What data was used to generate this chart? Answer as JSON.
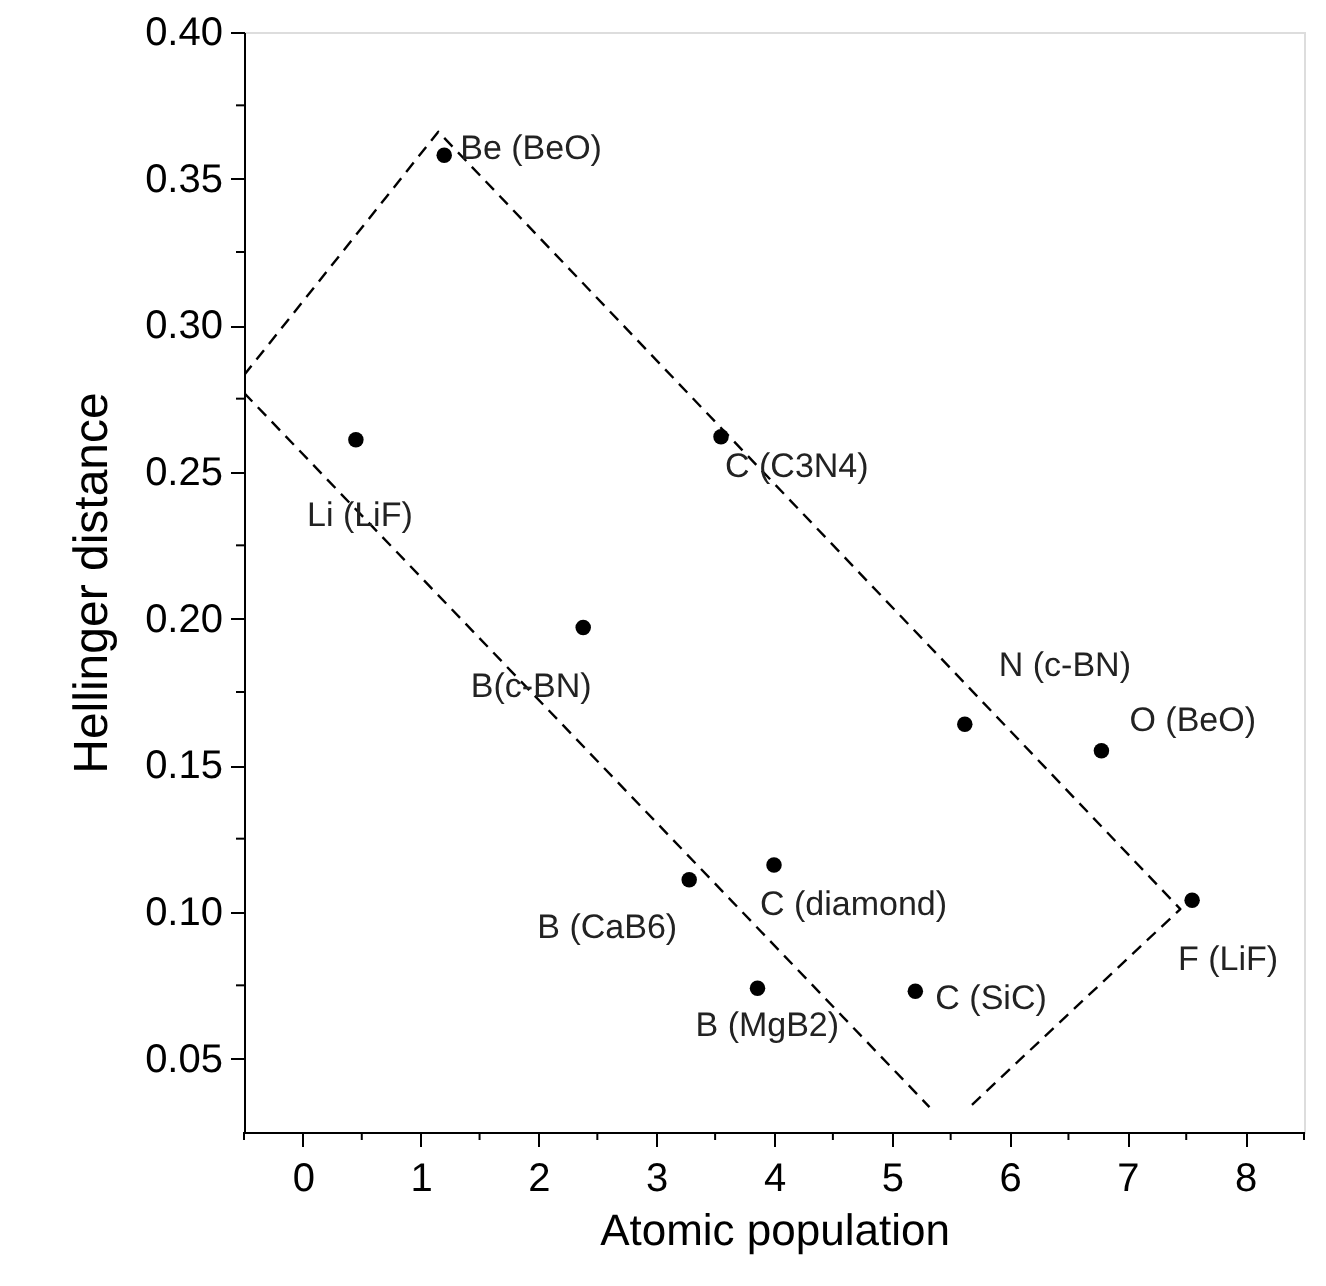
{
  "chart_data": {
    "type": "scatter",
    "xlabel": "Atomic population",
    "ylabel": "Hellinger distance",
    "xlim": [
      -0.5,
      8.5
    ],
    "ylim": [
      0.025,
      0.4
    ],
    "xticks": [
      {
        "value": -0.5,
        "label": null
      },
      0,
      {
        "value": 0.5,
        "label": null
      },
      1,
      {
        "value": 1.5,
        "label": null
      },
      2,
      {
        "value": 2.5,
        "label": null
      },
      3,
      {
        "value": 3.5,
        "label": null
      },
      4,
      {
        "value": 4.5,
        "label": null
      },
      5,
      {
        "value": 5.5,
        "label": null
      },
      6,
      {
        "value": 6.5,
        "label": null
      },
      7,
      {
        "value": 7.5,
        "label": null
      },
      8,
      {
        "value": 8.5,
        "label": null
      }
    ],
    "yticks": [
      {
        "value": 0.05,
        "label": "0.05"
      },
      {
        "value": 0.075,
        "label": null
      },
      {
        "value": 0.1,
        "label": "0.10"
      },
      {
        "value": 0.125,
        "label": null
      },
      {
        "value": 0.15,
        "label": "0.15"
      },
      {
        "value": 0.175,
        "label": null
      },
      {
        "value": 0.2,
        "label": "0.20"
      },
      {
        "value": 0.225,
        "label": null
      },
      {
        "value": 0.25,
        "label": "0.25"
      },
      {
        "value": 0.275,
        "label": null
      },
      {
        "value": 0.3,
        "label": "0.30"
      },
      {
        "value": 0.325,
        "label": null
      },
      {
        "value": 0.35,
        "label": "0.35"
      },
      {
        "value": 0.375,
        "label": null
      },
      {
        "value": 0.4,
        "label": "0.40"
      }
    ],
    "grid": false,
    "series": [
      {
        "type": "scatter",
        "color": "#000000",
        "marker": "circle",
        "x": [
          1.2,
          0.45,
          3.55,
          2.38,
          5.62,
          6.78,
          7.55,
          3.28,
          4.0,
          3.86,
          5.2
        ],
        "values": [
          0.358,
          0.261,
          0.262,
          0.197,
          0.164,
          0.155,
          0.104,
          0.111,
          0.116,
          0.074,
          0.073
        ]
      },
      {
        "type": "line",
        "color": "#000000",
        "marker": "none",
        "line_style": "dashed",
        "x": [
          -0.5,
          5.32
        ],
        "values": [
          0.277,
          0.0335
        ]
      },
      {
        "type": "line",
        "color": "#000000",
        "marker": "none",
        "line_style": "dashed",
        "x": [
          -0.5,
          1.15,
          7.45,
          5.66
        ],
        "values": [
          0.283,
          0.366,
          0.101,
          0.0335
        ]
      }
    ],
    "annotations": [
      {
        "text": "Be (BeO)",
        "x": 1.2,
        "y": 0.358
      },
      {
        "text": "Li (LiF)",
        "x": 0.45,
        "y": 0.261
      },
      {
        "text": "C (C3N4)",
        "x": 3.55,
        "y": 0.262
      },
      {
        "text": "B(c-BN)",
        "x": 2.38,
        "y": 0.197
      },
      {
        "text": "N (c-BN)",
        "x": 5.62,
        "y": 0.164
      },
      {
        "text": "O (BeO)",
        "x": 6.78,
        "y": 0.155
      },
      {
        "text": "F (LiF)",
        "x": 7.55,
        "y": 0.104
      },
      {
        "text": "B (CaB6)",
        "x": 3.28,
        "y": 0.111
      },
      {
        "text": "C (diamond)",
        "x": 4.0,
        "y": 0.116
      },
      {
        "text": "B (MgB2)",
        "x": 3.86,
        "y": 0.074
      },
      {
        "text": "C (SiC)",
        "x": 5.2,
        "y": 0.073
      }
    ]
  }
}
